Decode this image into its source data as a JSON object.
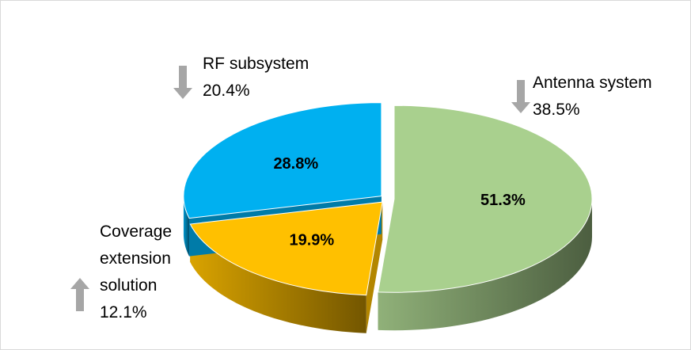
{
  "chart_data": {
    "type": "pie3d",
    "categories": [
      "Antenna system",
      "Coverage extension solution",
      "RF subsystem"
    ],
    "values": [
      51.3,
      19.9,
      28.8
    ],
    "value_labels": [
      "51.3%",
      "19.9%",
      "28.8%"
    ],
    "colors": [
      "#a9d08e",
      "#ffc000",
      "#00b0f0"
    ],
    "annotations": [
      {
        "value": 38.5,
        "label": "38.5%",
        "direction": "down"
      },
      {
        "value": 12.1,
        "label": "12.1%",
        "direction": "up"
      },
      {
        "value": 20.4,
        "label": "20.4%",
        "direction": "down"
      }
    ]
  }
}
